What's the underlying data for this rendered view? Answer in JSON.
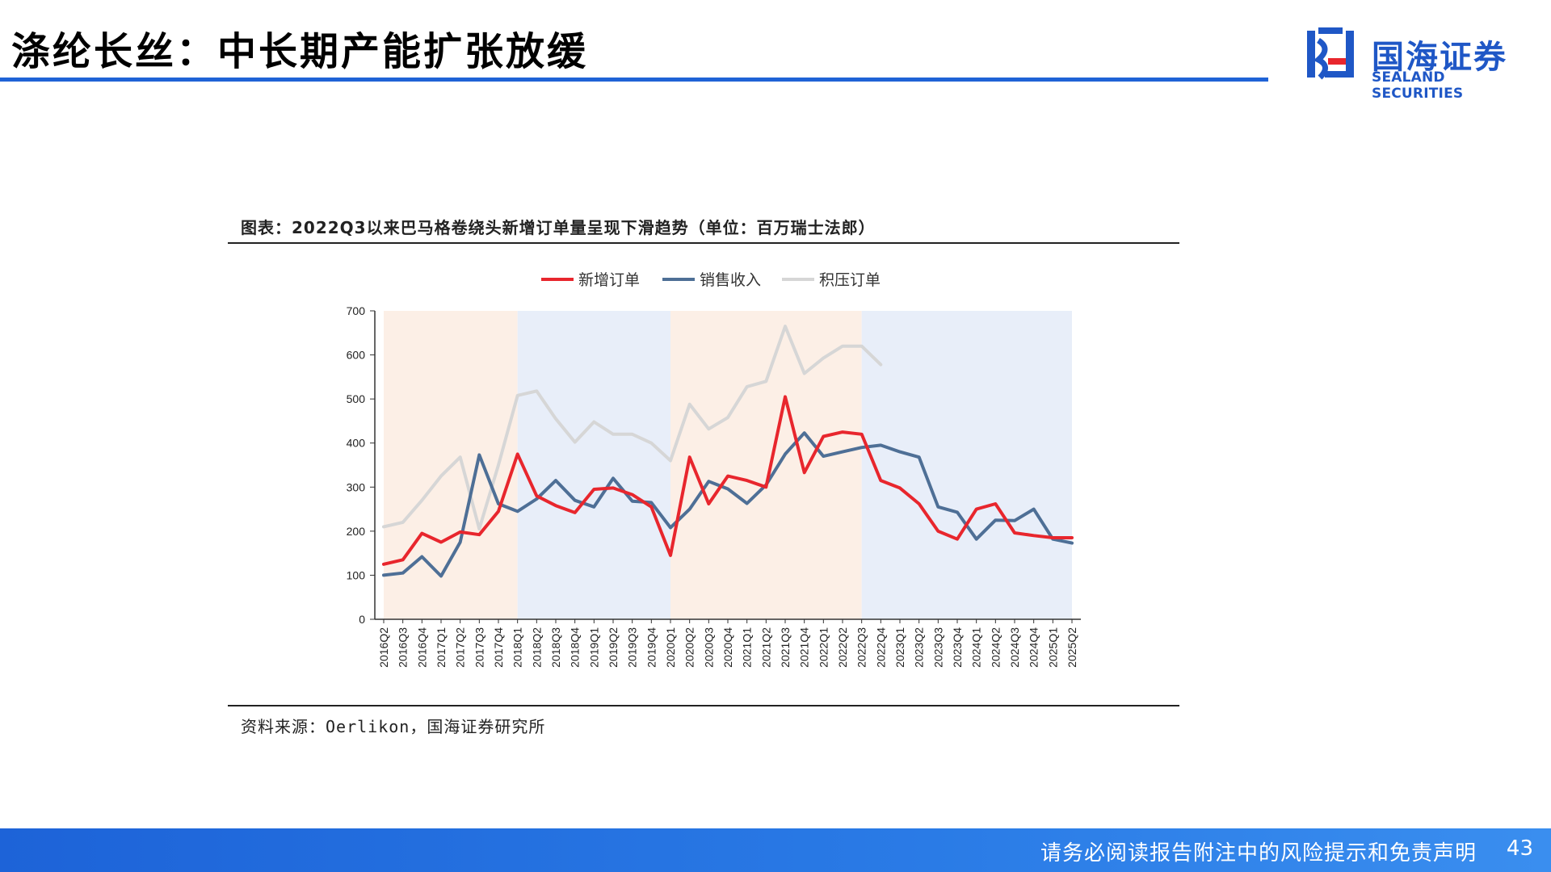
{
  "header": {
    "title": "涤纶长丝：中长期产能扩张放缓"
  },
  "logo": {
    "name_cn": "国海证券",
    "name_en": "SEALAND SECURITIES",
    "brand_color": "#1f57c6"
  },
  "figure": {
    "caption": "图表：2022Q3以来巴马格卷绕头新增订单量呈现下滑趋势（单位：百万瑞士法郎）",
    "source": "资料来源：Oerlikon，国海证券研究所"
  },
  "chart_data": {
    "type": "line",
    "ylim": [
      0,
      700
    ],
    "yticks": [
      "0",
      "100",
      "200",
      "300",
      "400",
      "500",
      "600",
      "700"
    ],
    "legend_position": "top-center",
    "categories": [
      "2016Q2",
      "2016Q3",
      "2016Q4",
      "2017Q1",
      "2017Q2",
      "2017Q3",
      "2017Q4",
      "2018Q1",
      "2018Q2",
      "2018Q3",
      "2018Q4",
      "2019Q1",
      "2019Q2",
      "2019Q3",
      "2019Q4",
      "2020Q1",
      "2020Q2",
      "2020Q3",
      "2020Q4",
      "2021Q1",
      "2021Q2",
      "2021Q3",
      "2021Q4",
      "2022Q1",
      "2022Q2",
      "2022Q3",
      "2022Q4",
      "2023Q1",
      "2023Q2",
      "2023Q3",
      "2023Q4",
      "2024Q1",
      "2024Q2",
      "2024Q3",
      "2024Q4",
      "2025Q1",
      "2025Q2"
    ],
    "series": [
      {
        "name": "新增订单",
        "color": "#e8262d",
        "values": [
          125,
          135,
          195,
          175,
          198,
          192,
          245,
          375,
          280,
          258,
          242,
          295,
          298,
          283,
          255,
          145,
          368,
          262,
          325,
          315,
          300,
          505,
          333,
          415,
          425,
          420,
          315,
          298,
          262,
          200,
          182,
          250,
          262,
          196,
          190,
          185,
          185
        ]
      },
      {
        "name": "销售收入",
        "color": "#4e6f96",
        "values": [
          100,
          105,
          142,
          98,
          175,
          373,
          262,
          245,
          273,
          315,
          270,
          255,
          320,
          268,
          265,
          208,
          250,
          313,
          296,
          263,
          305,
          375,
          423,
          370,
          380,
          390,
          395,
          380,
          368,
          255,
          243,
          182,
          225,
          224,
          250,
          182,
          173
        ]
      },
      {
        "name": "积压订单",
        "color": "#d6d6d6",
        "values": [
          210,
          220,
          270,
          325,
          368,
          205,
          350,
          508,
          518,
          455,
          402,
          448,
          420,
          420,
          400,
          360,
          488,
          432,
          458,
          528,
          540,
          665,
          558,
          593,
          620,
          620,
          578,
          null,
          null,
          null,
          null,
          null,
          null,
          null,
          null,
          null,
          null
        ]
      }
    ],
    "shaded_bands": [
      {
        "from": "2016Q2",
        "to": "2018Q1",
        "color": "#fcefe6"
      },
      {
        "from": "2018Q1",
        "to": "2020Q1",
        "color": "#e8eef9"
      },
      {
        "from": "2020Q1",
        "to": "2022Q3",
        "color": "#fcefe6"
      },
      {
        "from": "2022Q3",
        "to": "2025Q2",
        "color": "#e8eef9"
      }
    ]
  },
  "footer": {
    "disclaimer": "请务必阅读报告附注中的风险提示和免责声明",
    "page_number": "43"
  }
}
